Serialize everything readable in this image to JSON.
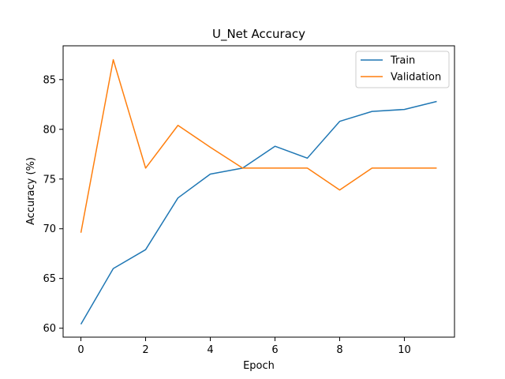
{
  "chart_data": {
    "type": "line",
    "title": "U_Net Accuracy",
    "xlabel": "Epoch",
    "ylabel": "Accuracy (%)",
    "xlim": [
      -0.55,
      11.55
    ],
    "ylim": [
      59.1,
      88.4
    ],
    "xticks": [
      0,
      2,
      4,
      6,
      8,
      10
    ],
    "yticks": [
      60,
      65,
      70,
      75,
      80,
      85
    ],
    "grid": false,
    "legend_position": "top-right",
    "x": [
      0,
      1,
      2,
      3,
      4,
      5,
      6,
      7,
      8,
      9,
      10,
      11
    ],
    "series": [
      {
        "name": "Train",
        "color": "#1f77b4",
        "values": [
          60.4,
          66.0,
          67.9,
          73.1,
          75.5,
          76.1,
          78.3,
          77.1,
          80.8,
          81.8,
          82.0,
          82.8
        ]
      },
      {
        "name": "Validation",
        "color": "#ff7f0e",
        "values": [
          69.6,
          87.0,
          76.1,
          80.4,
          78.2,
          76.1,
          76.1,
          76.1,
          73.9,
          76.1,
          76.1,
          76.1
        ]
      }
    ]
  }
}
